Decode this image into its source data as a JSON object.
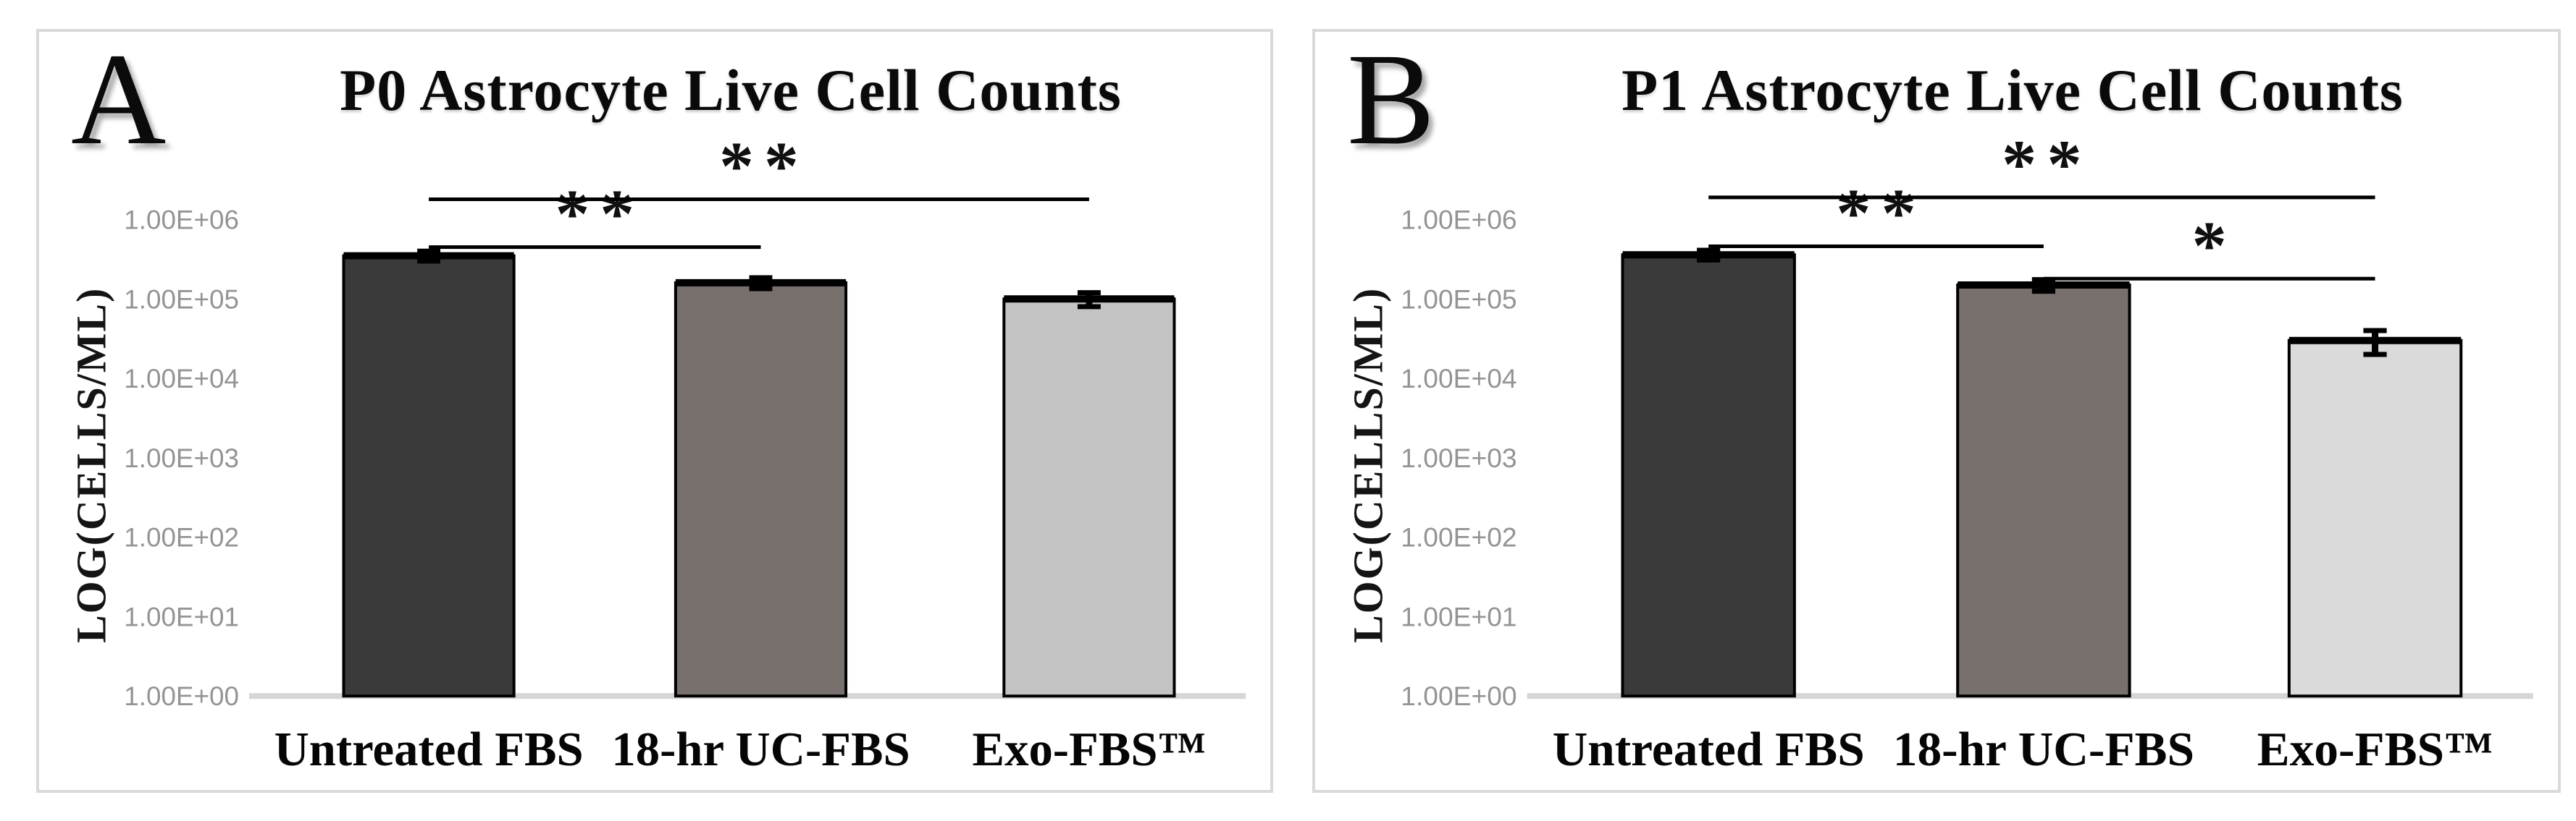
{
  "figure": {
    "background": "#ffffff",
    "panel_border_color": "#d9d9d9",
    "axis_line_color": "#d6d6d6",
    "tick_label_color": "#949494"
  },
  "chart_data": [
    {
      "type": "bar",
      "panel_label": "A",
      "title": "P0 Astrocyte Live Cell Counts",
      "ylabel": "LOG(CELLS/ML)",
      "xlabel": "",
      "yaxis": {
        "scale": "log",
        "min": 1,
        "max": 1000000,
        "ticks": [
          {
            "label": "1.00E+06",
            "value": 1000000
          },
          {
            "label": "1.00E+05",
            "value": 100000
          },
          {
            "label": "1.00E+04",
            "value": 10000
          },
          {
            "label": "1.00E+03",
            "value": 1000
          },
          {
            "label": "1.00E+02",
            "value": 100
          },
          {
            "label": "1.00E+01",
            "value": 10
          },
          {
            "label": "1.00E+00",
            "value": 1
          }
        ],
        "gridlines": false
      },
      "categories": [
        "Untreated FBS",
        "18-hr UC-FBS",
        "Exo-FBS™"
      ],
      "values": [
        350000,
        160000,
        100000
      ],
      "errors": [
        50000,
        25000,
        20000
      ],
      "bar_colors": [
        "#3a3a3a",
        "#77706d",
        "#c4c4c4"
      ],
      "significance": [
        {
          "from": 0,
          "to": 1,
          "label": "**",
          "level": 450000
        },
        {
          "from": 0,
          "to": 2,
          "label": "**",
          "level": 1800000
        }
      ]
    },
    {
      "type": "bar",
      "panel_label": "B",
      "title": "P1 Astrocyte Live Cell Counts",
      "ylabel": "LOG(CELLS/ML)",
      "xlabel": "",
      "yaxis": {
        "scale": "log",
        "min": 1,
        "max": 1000000,
        "ticks": [
          {
            "label": "1.00E+06",
            "value": 1000000
          },
          {
            "label": "1.00E+05",
            "value": 100000
          },
          {
            "label": "1.00E+04",
            "value": 10000
          },
          {
            "label": "1.00E+03",
            "value": 1000
          },
          {
            "label": "1.00E+02",
            "value": 100
          },
          {
            "label": "1.00E+01",
            "value": 10
          },
          {
            "label": "1.00E+00",
            "value": 1
          }
        ],
        "gridlines": false
      },
      "categories": [
        "Untreated FBS",
        "18-hr UC-FBS",
        "Exo-FBS™"
      ],
      "values": [
        360000,
        150000,
        30000
      ],
      "errors": [
        50000,
        25000,
        10000
      ],
      "bar_colors": [
        "#3a3a3a",
        "#77706d",
        "#dadada"
      ],
      "significance": [
        {
          "from": 0,
          "to": 1,
          "label": "**",
          "level": 460000
        },
        {
          "from": 0,
          "to": 2,
          "label": "**",
          "level": 1900000
        },
        {
          "from": 1,
          "to": 2,
          "label": "*",
          "level": 180000
        }
      ]
    }
  ]
}
